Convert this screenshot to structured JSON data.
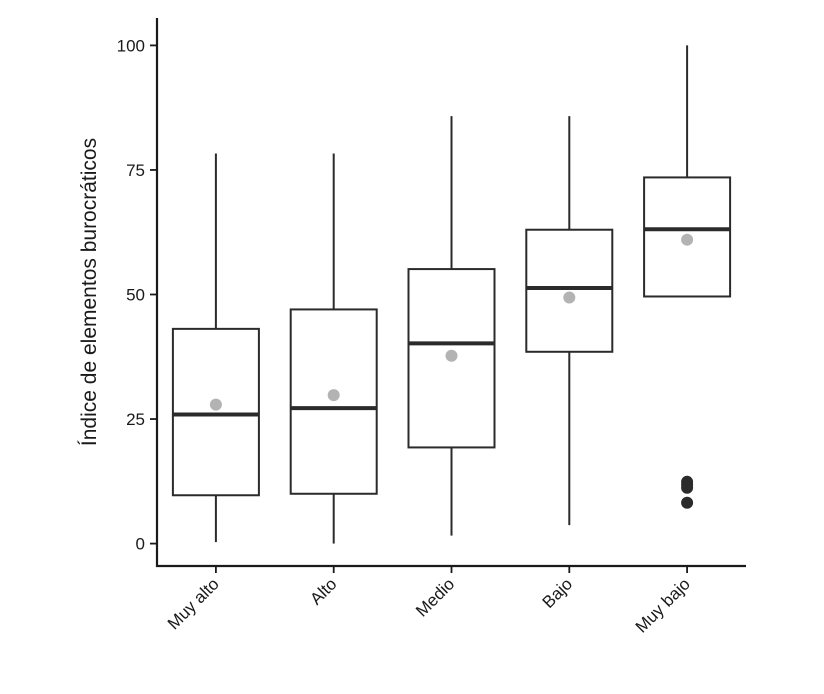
{
  "chart_data": {
    "type": "boxplot",
    "title": "",
    "xlabel": "",
    "ylabel": "Índice de elementos burocráticos",
    "ylim": [
      -4.5,
      105.5
    ],
    "yticks": [
      0,
      25,
      50,
      75,
      100
    ],
    "ytick_labels": [
      "0",
      "25",
      "50",
      "75",
      "100"
    ],
    "grid": false,
    "legend": "none",
    "categories": [
      "Muy alto",
      "Alto",
      "Medio",
      "Bajo",
      "Muy bajo"
    ],
    "boxes": [
      {
        "category": "Muy alto",
        "whisker_low": 0.3,
        "q1": 9.7,
        "median": 25.9,
        "q3": 43.1,
        "whisker_high": 78.3,
        "mean": 27.9,
        "outliers": []
      },
      {
        "category": "Alto",
        "whisker_low": 0.0,
        "q1": 10.0,
        "median": 27.2,
        "q3": 47.0,
        "whisker_high": 78.3,
        "mean": 29.8,
        "outliers": []
      },
      {
        "category": "Medio",
        "whisker_low": 1.6,
        "q1": 19.3,
        "median": 40.2,
        "q3": 55.1,
        "whisker_high": 85.8,
        "mean": 37.7,
        "outliers": []
      },
      {
        "category": "Bajo",
        "whisker_low": 3.7,
        "q1": 38.5,
        "median": 51.3,
        "q3": 63.0,
        "whisker_high": 85.8,
        "mean": 49.4,
        "outliers": []
      },
      {
        "category": "Muy bajo",
        "whisker_low": 49.6,
        "q1": 49.6,
        "median": 63.1,
        "q3": 73.5,
        "whisker_high": 100.0,
        "mean": 61.0,
        "outliers": [
          12.4,
          11.8,
          11.2,
          8.2
        ]
      }
    ],
    "colors": {
      "box_line": "#2b2b2b",
      "median": "#2b2b2b",
      "mean_point": "#b3b3b3",
      "outlier": "#2b2b2b",
      "axis": "#1a1a1a"
    }
  }
}
